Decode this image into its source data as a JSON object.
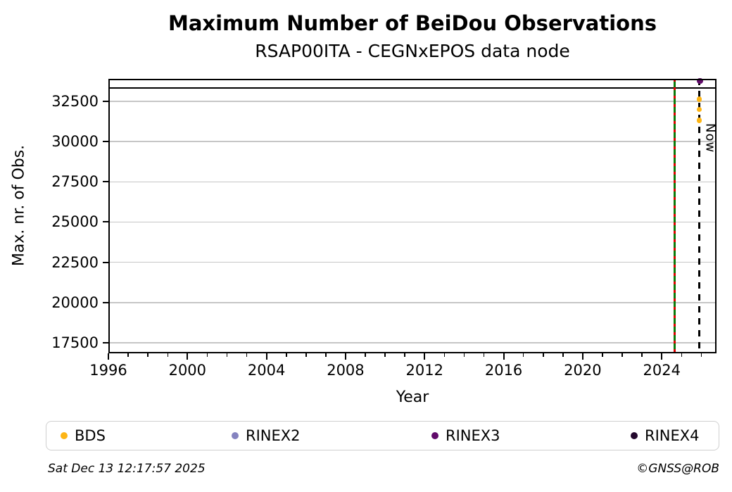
{
  "chart_data": {
    "type": "scatter",
    "title": "Maximum Number of BeiDou Observations",
    "subtitle": "RSAP00ITA - CEGNxEPOS data node",
    "xlabel": "Year",
    "ylabel": "Max. nr. of Obs.",
    "xlim": [
      1996.0,
      2026.77
    ],
    "ylim": [
      16840,
      33900
    ],
    "xticks_major": [
      1996,
      2000,
      2004,
      2008,
      2012,
      2016,
      2020,
      2024
    ],
    "xticks_minor_step": 1,
    "yticks": [
      17500,
      20000,
      22500,
      25000,
      27500,
      30000,
      32500
    ],
    "grid": "horizontal-only",
    "grid_color": "#c6c6c6",
    "legend_position": "bottom-expand",
    "series": [
      {
        "name": "BDS",
        "color": "#FDB515",
        "points": [
          {
            "x": 2025.9,
            "y": 32630
          },
          {
            "x": 2025.9,
            "y": 31980
          },
          {
            "x": 2025.9,
            "y": 31320
          }
        ]
      },
      {
        "name": "RINEX2",
        "color": "#8583C0",
        "points": []
      },
      {
        "name": "RINEX3",
        "color": "#610B6B",
        "points": [
          {
            "x": 2025.93,
            "y": 33770
          }
        ]
      },
      {
        "name": "RINEX4",
        "color": "#23082D",
        "points": []
      }
    ],
    "reference_line": {
      "y": 33330,
      "color": "#000000"
    },
    "event_line": {
      "x": 2024.64,
      "solid_color": "#0B7A0B",
      "dash_color": "#E00000"
    },
    "now_line": {
      "x": 2025.9,
      "label": "Now",
      "color": "#000000"
    }
  },
  "footer": {
    "timestamp": "Sat Dec 13 12:17:57 2025",
    "credit": "©GNSS@ROB"
  }
}
